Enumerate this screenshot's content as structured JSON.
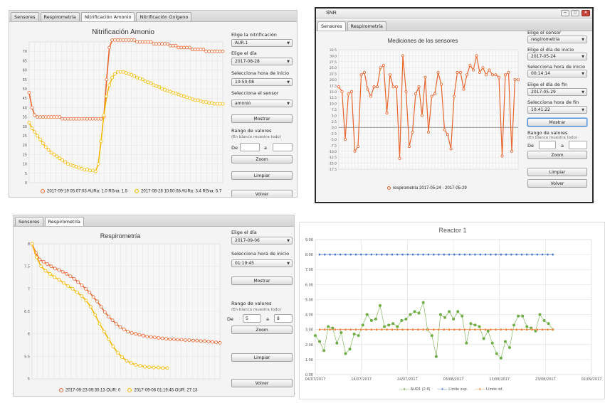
{
  "panel_tl": {
    "tabs": [
      "Sensores",
      "Respirometría",
      "Nitrificación Amonio",
      "Nitrificación Oxígeno"
    ],
    "active_tab": 2,
    "title": "Nitrificación Amonio",
    "controls": {
      "nitrif_label": "Elige la nitrificación",
      "nitrif_value": "AUR.1",
      "dia_label": "Elige el día",
      "dia_value": "2017-08-28",
      "hora_label": "Selecciona hora de inicio",
      "hora_value": "10:50:08",
      "sensor_label": "Selecciona el sensor",
      "sensor_value": "amonio",
      "mostrar": "Mostrar",
      "rango_label": "Rango de valores",
      "rango_sub": "(En blanco muestra todo)",
      "de": "De",
      "a": "a",
      "zoom": "Zoom",
      "limpiar": "Limpiar",
      "volver": "Volver"
    },
    "legend": [
      "2017-09-19 05:07:03 AURa: 1.0 RSna: 1.5",
      "2017-08-28 10:50:08 AURa: 3.4 RSna: 5.7"
    ]
  },
  "panel_tr": {
    "window_title": "SNR",
    "tabs": [
      "Sensores",
      "Respirometría"
    ],
    "active_tab": 0,
    "title": "Mediciones de los sensores",
    "controls": {
      "sensor_label": "Elige el sensor",
      "sensor_value": "respirometría",
      "dia_ini_label": "Elige el día de inicio",
      "dia_ini_value": "2017-05-24",
      "hora_ini_label": "Selecciona hora de inicio",
      "hora_ini_value": "00:14:14",
      "dia_fin_label": "Elige el día de fin",
      "dia_fin_value": "2017-05-29",
      "hora_fin_label": "Selecciona hora de fin",
      "hora_fin_value": "10:41:22",
      "mostrar": "Mostrar",
      "rango_label": "Rango de valores",
      "rango_sub": "(En blanco muestra todo)",
      "de": "De",
      "a": "a",
      "zoom": "Zoom",
      "limpiar": "Limpiar",
      "volver": "Volver"
    },
    "legend": "respirometría 2017-05-24 - 2017-05-29"
  },
  "panel_bl": {
    "tabs": [
      "Sensores",
      "Respirometría"
    ],
    "active_tab": 1,
    "title": "Respirometría",
    "controls": {
      "dia_label": "Elige el día",
      "dia_value": "2017-09-06",
      "hora_label": "Selecciona hora de inicio",
      "hora_value": "01:19:45",
      "mostrar": "Mostrar",
      "rango_label": "Rango de valores",
      "rango_sub": "(En blanco muestra todo)",
      "de": "De",
      "de_value": "5",
      "a": "a",
      "a_value": "8",
      "zoom": "Zoom",
      "limpiar": "Limpiar",
      "volver": "Volver"
    },
    "legend": [
      "2017-09-23 09:30:13 OUR: 0",
      "2017-09-06 01:19:45 OUR: 27:13"
    ]
  },
  "panel_br": {
    "title": "Reactor 1",
    "legend": [
      "AUR1 (2-8)",
      "Límite sup.",
      "Límite inf."
    ]
  },
  "colors": {
    "red_orange": "#e8642c",
    "amber": "#f5b800",
    "blue": "#4472c4",
    "orange": "#ed7d31",
    "green": "#70ad47"
  },
  "chart_data": [
    {
      "type": "line",
      "title": "Nitrificación Amonio",
      "ylim": [
        0,
        75
      ],
      "yticks": [
        "0",
        "5",
        "10",
        "15",
        "20",
        "25",
        "30",
        "35",
        "40",
        "45",
        "50",
        "55",
        "60",
        "65",
        "70"
      ],
      "x": [
        0,
        2,
        4,
        6,
        8,
        10,
        12,
        14,
        16,
        18,
        20,
        22,
        24,
        26,
        28,
        30,
        32,
        34,
        36,
        38,
        40,
        42,
        44,
        46,
        48,
        50,
        52,
        54,
        56,
        58,
        60,
        62,
        64,
        66,
        68,
        70,
        72,
        74,
        76,
        78,
        80,
        82,
        84,
        86,
        88,
        90,
        92,
        94,
        96,
        98,
        100,
        102,
        104,
        106,
        108,
        110,
        112,
        114,
        116,
        118,
        120,
        122,
        124,
        126,
        128,
        130,
        132,
        134,
        136,
        138,
        140
      ],
      "series": [
        {
          "name": "2017-09-19 05:07:03 AURa: 1.0 RSna: 1.5",
          "values": [
            48,
            40,
            36,
            35,
            35,
            35,
            35,
            35,
            35,
            35,
            35,
            35,
            34,
            34,
            34,
            34,
            34,
            34,
            34,
            34,
            34,
            34,
            34,
            34,
            34,
            34,
            34,
            35,
            55,
            72,
            76,
            76,
            76,
            76,
            76,
            76,
            76,
            76,
            76,
            75,
            75,
            75,
            75,
            75,
            75,
            74,
            74,
            74,
            74,
            74,
            74,
            73,
            73,
            73,
            72,
            72,
            72,
            72,
            72,
            71,
            71,
            71,
            71,
            71,
            70,
            70,
            70,
            70,
            70,
            70,
            70
          ]
        },
        {
          "name": "2017-08-28 10:50:08 AURa: 3.4 RSna: 5.7",
          "values": [
            32,
            29,
            27,
            25,
            23,
            21,
            19,
            17.5,
            16,
            15,
            14,
            13,
            12,
            11,
            10,
            9.5,
            9,
            8.5,
            8,
            7.5,
            7,
            7,
            6.5,
            6.5,
            6,
            10,
            22,
            36,
            46,
            52,
            56,
            58,
            59,
            59,
            59,
            58.5,
            58,
            57.5,
            57,
            56,
            55.5,
            55,
            54,
            53.5,
            53,
            52,
            51.5,
            51,
            50,
            49.5,
            49,
            48.5,
            48,
            47.5,
            47,
            46.5,
            46,
            45.5,
            45,
            44.5,
            44,
            44,
            43.5,
            43,
            43,
            42.5,
            42.5,
            42,
            42,
            42,
            42
          ]
        }
      ]
    },
    {
      "type": "line",
      "title": "Mediciones de los sensores",
      "ylim": [
        -17.5,
        32.5
      ],
      "yticks": [
        "32.5",
        "30.0",
        "27.5",
        "25.0",
        "22.5",
        "20.0",
        "17.5",
        "15.0",
        "12.5",
        "10.0",
        "7.5",
        "5.0",
        "2.5",
        "0.0",
        "-2.5",
        "-5.0",
        "-7.5",
        "-10.0",
        "-12.5",
        "-15.0",
        "-17.5"
      ],
      "series": [
        {
          "name": "respirometría 2017-05-24 - 2017-05-29",
          "values": [
            17,
            15,
            -5,
            14,
            15,
            -10,
            -8,
            22,
            23,
            16,
            13,
            17,
            17,
            25,
            26,
            6,
            22,
            17,
            17,
            -13,
            30,
            15,
            -8,
            -2,
            14,
            17,
            5,
            21,
            -2,
            13,
            14,
            23,
            18,
            -1,
            -3,
            -9,
            13,
            23,
            23,
            16,
            22,
            26,
            24,
            30,
            23,
            25,
            22,
            24,
            22,
            22,
            21,
            -12,
            22,
            23,
            -10,
            20,
            20
          ]
        }
      ]
    },
    {
      "type": "line",
      "title": "Respirometría",
      "ylim": [
        5,
        8
      ],
      "yticks": [
        "8",
        "7.5",
        "7",
        "6.5",
        "6",
        "5.5",
        "5"
      ],
      "series": [
        {
          "name": "2017-09-23 09:30:13 OUR: 0",
          "values": [
            8,
            7.8,
            7.65,
            7.6,
            7.55,
            7.5,
            7.45,
            7.42,
            7.38,
            7.33,
            7.28,
            7.22,
            7.15,
            7.08,
            7.0,
            6.92,
            6.82,
            6.72,
            6.6,
            6.48,
            6.38,
            6.3,
            6.22,
            6.15,
            6.1,
            6.05,
            6.02,
            6.0,
            5.98,
            5.96,
            5.94,
            5.93,
            5.92,
            5.91,
            5.9,
            5.89,
            5.88,
            5.88,
            5.87,
            5.87,
            5.86,
            5.86,
            5.85,
            5.85,
            5.84,
            5.84,
            5.83,
            5.82,
            5.81,
            5.8
          ]
        },
        {
          "name": "2017-09-06 01:19:45 OUR: 27:13",
          "values": [
            8,
            7.7,
            7.5,
            7.4,
            7.33,
            7.26,
            7.2,
            7.13,
            7.06,
            7.0,
            6.92,
            6.84,
            6.74,
            6.6,
            6.42,
            6.22,
            6.05,
            5.88,
            5.72,
            5.58,
            5.48,
            5.4,
            5.35,
            5.31,
            5.29,
            5.27,
            5.26,
            5.25,
            5.25,
            5.24,
            5.24
          ]
        }
      ]
    },
    {
      "type": "line",
      "title": "Reactor 1",
      "xlim": [
        "04/07/2017",
        "02/09/2017"
      ],
      "xticks": [
        "04/07/2017",
        "14/07/2017",
        "24/07/2017",
        "03/08/2017",
        "13/08/2017",
        "23/08/2017",
        "02/09/2017"
      ],
      "ylim": [
        0,
        9
      ],
      "yticks": [
        "0.00",
        "1.00",
        "2.00",
        "3.00",
        "4.00",
        "5.00",
        "6.00",
        "7.00",
        "8.00",
        "9.00"
      ],
      "series": [
        {
          "name": "AUR1 (2-8)",
          "values": [
            2.6,
            2.2,
            1.6,
            3.2,
            3.1,
            2.1,
            2.8,
            1.4,
            1.7,
            2.7,
            2.6,
            3.3,
            4.0,
            3.6,
            3.7,
            4.6,
            3.2,
            3.3,
            3.4,
            3.2,
            3.6,
            3.7,
            4.0,
            4.2,
            4.1,
            4.8,
            3.0,
            2.6,
            1.2,
            4.0,
            3.8,
            4.2,
            3.7,
            4.2,
            3.9,
            2.1,
            3.4,
            3.3,
            3.2,
            2.4,
            2.9,
            2.1,
            1.4,
            1.1,
            2.2,
            1.8,
            3.3,
            3.9,
            3.9,
            3.2,
            3.1,
            2.9,
            4.0,
            3.6,
            3.4,
            3.0
          ]
        },
        {
          "name": "Límite sup.",
          "constant": 8
        },
        {
          "name": "Límite inf.",
          "constant": 3
        }
      ]
    }
  ]
}
